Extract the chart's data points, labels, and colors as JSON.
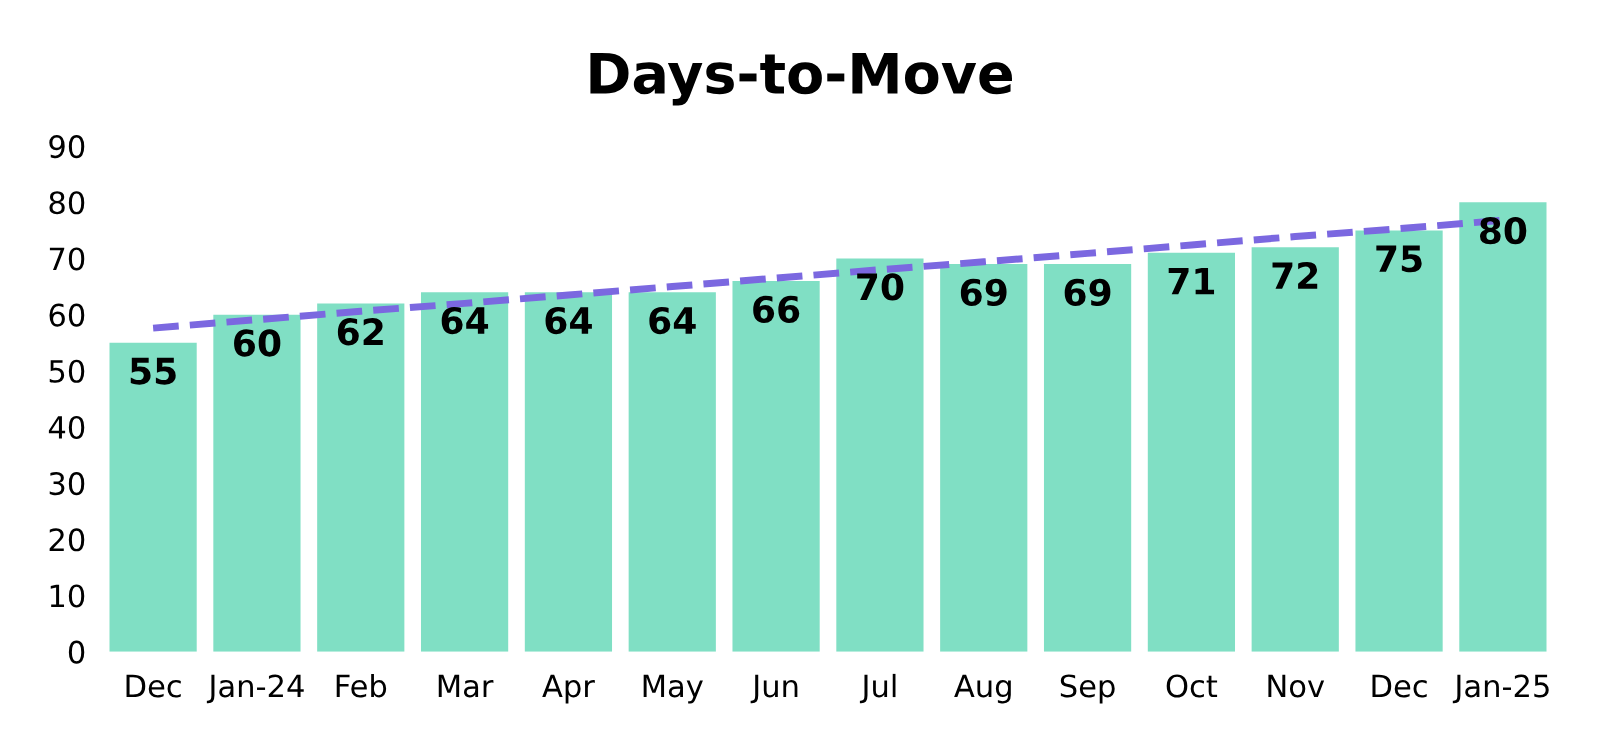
{
  "chart_data": {
    "type": "bar",
    "title": "Days-to-Move",
    "categories": [
      "Dec",
      "Jan-24",
      "Feb",
      "Mar",
      "Apr",
      "May",
      "Jun",
      "Jul",
      "Aug",
      "Sep",
      "Oct",
      "Nov",
      "Dec",
      "Jan-25"
    ],
    "series": [
      {
        "color": "#80dfc4",
        "values": [
          55,
          60,
          62,
          64,
          64,
          64,
          66,
          70,
          69,
          69,
          71,
          72,
          75,
          80
        ],
        "value_labels": [
          "55",
          "60",
          "62",
          "64",
          "64",
          "64",
          "66",
          "70",
          "69",
          "69",
          "71",
          "72",
          "75",
          "80"
        ]
      },
      {
        "type": "line",
        "color": "#7b68e0",
        "line_style": "dashed",
        "values": [
          57.6,
          59.1,
          60.6,
          62.0,
          63.5,
          65.0,
          66.5,
          68.0,
          69.4,
          70.9,
          72.4,
          73.9,
          75.3,
          76.8
        ]
      }
    ],
    "ylim": [
      0,
      90
    ],
    "yticks": [
      0,
      10,
      20,
      30,
      40,
      50,
      60,
      70,
      80,
      90
    ],
    "grid": false,
    "legend": false
  }
}
